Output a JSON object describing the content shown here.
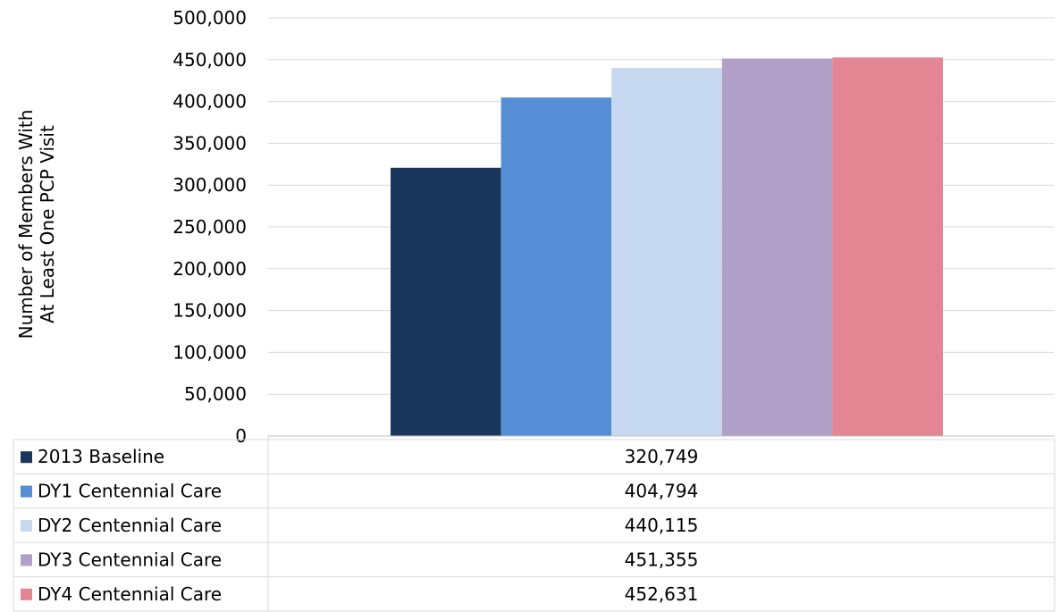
{
  "chart_data": {
    "type": "bar",
    "categories": [
      ""
    ],
    "ylabel": [
      "Number of Members With",
      "At Least One PCP Visit"
    ],
    "ylim": [
      0,
      500000
    ],
    "yticks": [
      "0",
      "50,000",
      "100,000",
      "150,000",
      "200,000",
      "250,000",
      "300,000",
      "350,000",
      "400,000",
      "450,000",
      "500,000"
    ],
    "grid": true,
    "legend_placement": "data-table-below",
    "series": [
      {
        "name": "2013 Baseline",
        "values": [
          320749
        ],
        "label": "320,749",
        "color": "#1b365d"
      },
      {
        "name": "DY1 Centennial Care",
        "values": [
          404794
        ],
        "label": "404,794",
        "color": "#558ed5"
      },
      {
        "name": "DY2 Centennial Care",
        "values": [
          440115
        ],
        "label": "440,115",
        "color": "#c6d9f0"
      },
      {
        "name": "DY3 Centennial Care",
        "values": [
          451355
        ],
        "label": "451,355",
        "color": "#b1a0c7"
      },
      {
        "name": "DY4 Centennial Care",
        "values": [
          452631
        ],
        "label": "452,631",
        "color": "#e48593"
      }
    ]
  }
}
